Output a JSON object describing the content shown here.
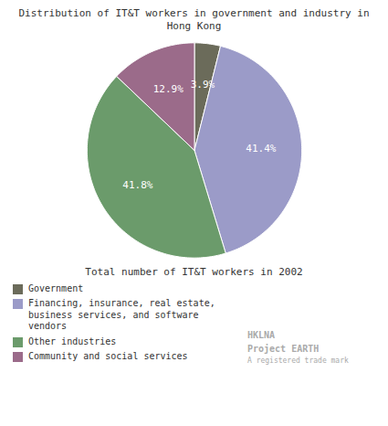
{
  "chart_data": {
    "type": "pie",
    "title": "Distribution of IT&T workers in government and industry in Hong Kong",
    "subtitle": "Total number of IT&T workers in 2002",
    "categories": [
      "Government",
      "Financing, insurance, real estate, business services, and software vendors",
      "Other industries",
      "Community and social services"
    ],
    "values": [
      3.9,
      41.4,
      41.8,
      12.9
    ],
    "value_labels": [
      "3.9%",
      "41.4%",
      "41.8%",
      "12.9%"
    ],
    "colors": [
      "#6b6b5a",
      "#9b9bc8",
      "#6b9b6b",
      "#9b6b8a"
    ],
    "data_labels": true,
    "legend": "lower left",
    "annotations": [
      "HKLNA",
      "Project",
      "EARTH",
      "A registered trade mark"
    ]
  }
}
